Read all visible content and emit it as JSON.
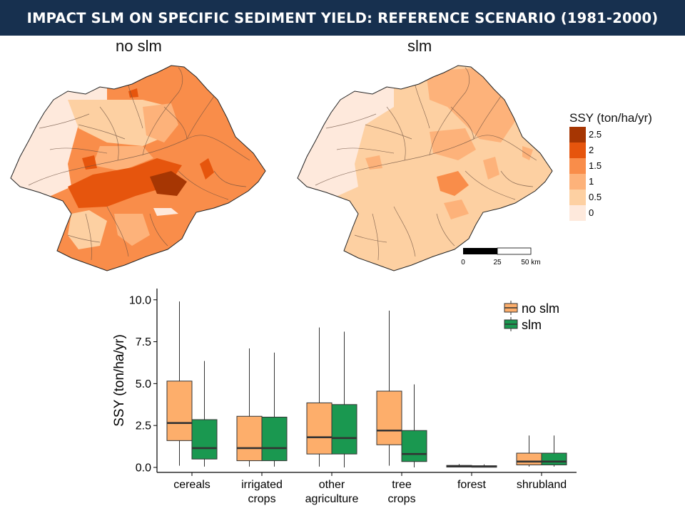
{
  "header": {
    "title": "IMPACT SLM ON SPECIFIC SEDIMENT YIELD: REFERENCE SCENARIO (1981-2000)"
  },
  "maps": [
    {
      "label": "no slm"
    },
    {
      "label": "slm"
    }
  ],
  "map_legend": {
    "title": "SSY (ton/ha/yr)",
    "entries": [
      {
        "label": "2.5",
        "color": "#a63603"
      },
      {
        "label": "2",
        "color": "#e6550d"
      },
      {
        "label": "1.5",
        "color": "#f98d4a"
      },
      {
        "label": "1",
        "color": "#fdb27a"
      },
      {
        "label": "0.5",
        "color": "#fdd0a2"
      },
      {
        "label": "0",
        "color": "#fee9dc"
      }
    ]
  },
  "scale_bar": {
    "ticks": [
      "0",
      "25",
      "50 km"
    ]
  },
  "chart_data": {
    "type": "box",
    "ylabel": "SSY (ton/ha/yr)",
    "xlabel": "",
    "ylim": [
      0,
      10.5
    ],
    "yticks": [
      "0.0",
      "2.5",
      "5.0",
      "7.5",
      "10.0"
    ],
    "ytick_values": [
      0,
      2.5,
      5.0,
      7.5,
      10.0
    ],
    "categories": [
      "cereals",
      "irrigated\ncrops",
      "other\nagriculture",
      "tree\ncrops",
      "forest",
      "shrubland"
    ],
    "legend": {
      "placement": "top-right"
    },
    "series": [
      {
        "name": "no slm",
        "color": "#fdae6b",
        "boxes": [
          {
            "min": 0.1,
            "q1": 1.6,
            "median": 2.65,
            "q3": 5.15,
            "max": 9.9
          },
          {
            "min": 0.05,
            "q1": 0.4,
            "median": 1.15,
            "q3": 3.05,
            "max": 7.1
          },
          {
            "min": 0.05,
            "q1": 0.8,
            "median": 1.8,
            "q3": 3.85,
            "max": 8.35
          },
          {
            "min": 0.1,
            "q1": 1.35,
            "median": 2.2,
            "q3": 4.55,
            "max": 9.35
          },
          {
            "min": 0.0,
            "q1": 0.02,
            "median": 0.06,
            "q3": 0.12,
            "max": 0.2
          },
          {
            "min": 0.05,
            "q1": 0.15,
            "median": 0.35,
            "q3": 0.85,
            "max": 1.9
          }
        ]
      },
      {
        "name": "slm",
        "color": "#1a9850",
        "boxes": [
          {
            "min": 0.05,
            "q1": 0.5,
            "median": 1.15,
            "q3": 2.85,
            "max": 6.35
          },
          {
            "min": 0.05,
            "q1": 0.4,
            "median": 1.15,
            "q3": 3.0,
            "max": 6.85
          },
          {
            "min": 0.0,
            "q1": 0.8,
            "median": 1.75,
            "q3": 3.75,
            "max": 8.1
          },
          {
            "min": 0.0,
            "q1": 0.35,
            "median": 0.8,
            "q3": 2.2,
            "max": 4.95
          },
          {
            "min": 0.0,
            "q1": 0.02,
            "median": 0.05,
            "q3": 0.1,
            "max": 0.18
          },
          {
            "min": 0.05,
            "q1": 0.15,
            "median": 0.35,
            "q3": 0.85,
            "max": 1.9
          }
        ]
      }
    ]
  }
}
